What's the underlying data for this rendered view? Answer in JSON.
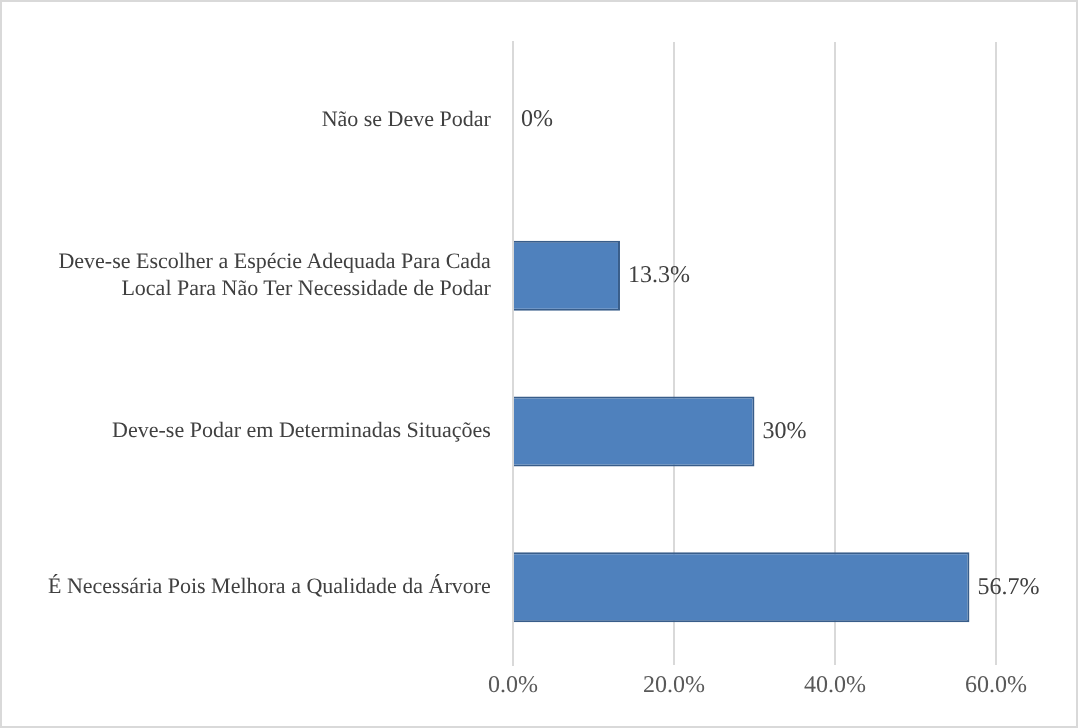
{
  "chart_data": {
    "type": "bar",
    "orientation": "horizontal",
    "categories": [
      "Não se Deve Podar",
      "Deve-se Escolher a Espécie Adequada Para Cada Local Para Não Ter Necessidade de Podar",
      "Deve-se Podar em Determinadas Situações",
      "É Necessária Pois Melhora a Qualidade da Árvore"
    ],
    "values": [
      0,
      13.3,
      30,
      56.7
    ],
    "value_labels": [
      "0%",
      "13.3%",
      "30%",
      "56.7%"
    ],
    "color": "#4f81bd",
    "xlim": [
      0,
      60
    ],
    "xticks": [
      {
        "value": 0,
        "label": "0.0%"
      },
      {
        "value": 20,
        "label": "20.0%"
      },
      {
        "value": 40,
        "label": "40.0%"
      },
      {
        "value": 60,
        "label": "60.0%"
      }
    ],
    "grid": "x",
    "legend": false
  }
}
